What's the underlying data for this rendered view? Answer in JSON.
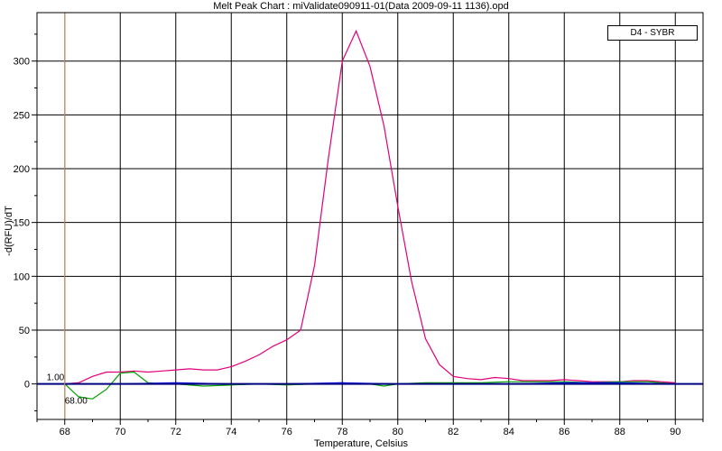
{
  "chart_data": {
    "type": "line",
    "title": "Melt Peak Chart : miValidate090911-01(Data 2009-09-11 1136).opd",
    "xlabel": "Temperature, Celsius",
    "ylabel": "-d(RFU)/dT",
    "xlim": [
      67,
      91
    ],
    "ylim": [
      -33,
      345
    ],
    "x_ticks": [
      68,
      70,
      72,
      74,
      76,
      78,
      80,
      82,
      84,
      86,
      88,
      90
    ],
    "y_ticks": [
      0,
      50,
      100,
      150,
      200,
      250,
      300
    ],
    "grid": true,
    "legend_position": "top-right",
    "legend_label": "D4 - SYBR",
    "cursor": {
      "x": 68.0,
      "x_label": "68.00",
      "y_label": "1.00",
      "color": "#e0a070"
    },
    "threshold": {
      "y": 0,
      "color": "#000080"
    },
    "series": [
      {
        "color": "#e0007a",
        "x": [
          68.0,
          68.5,
          69.0,
          69.5,
          70.0,
          70.5,
          71.0,
          71.5,
          72.0,
          72.5,
          73.0,
          73.5,
          74.0,
          74.5,
          75.0,
          75.5,
          76.0,
          76.5,
          77.0,
          77.5,
          78.0,
          78.5,
          79.0,
          79.5,
          80.0,
          80.5,
          81.0,
          81.5,
          82.0,
          82.5,
          83.0,
          83.5,
          84.0,
          84.5,
          85.0,
          85.5,
          86.0,
          86.5,
          87.0,
          87.5,
          88.0,
          88.5,
          89.0,
          89.5,
          90.0
        ],
        "y": [
          0,
          1,
          7,
          11,
          11,
          12,
          11,
          12,
          13,
          14,
          13,
          13,
          16,
          21,
          27,
          35,
          41,
          50,
          110,
          210,
          300,
          328,
          295,
          240,
          165,
          95,
          42,
          18,
          7,
          5,
          4,
          6,
          5,
          3,
          3,
          3,
          4,
          3,
          2,
          2,
          2,
          3,
          3,
          2,
          1
        ]
      },
      {
        "color": "#00a000",
        "x": [
          68.0,
          68.5,
          69.0,
          69.5,
          70.0,
          70.5,
          71.0,
          71.5,
          72.0,
          73.0,
          74.0,
          75.0,
          76.0,
          77.0,
          78.0,
          79.0,
          79.5,
          80.0,
          81.0,
          82.0,
          83.0,
          84.0,
          85.0,
          86.0,
          87.0,
          88.0,
          88.5,
          89.0,
          90.0
        ],
        "y": [
          0,
          -12,
          -14,
          -5,
          10,
          11,
          1,
          0,
          0,
          -2,
          -1,
          0,
          -1,
          0,
          1,
          0,
          -2,
          0,
          1,
          1,
          1,
          2,
          2,
          2,
          1,
          2,
          2,
          2,
          0
        ]
      },
      {
        "color": "#0000ff",
        "x": [
          68.0,
          70.0,
          72.0,
          74.0,
          76.0,
          78.0,
          80.0,
          82.0,
          84.0,
          86.0,
          88.0,
          90.0
        ],
        "y": [
          0,
          0,
          1,
          0,
          0,
          1,
          0,
          0,
          0,
          1,
          1,
          0
        ]
      }
    ]
  }
}
